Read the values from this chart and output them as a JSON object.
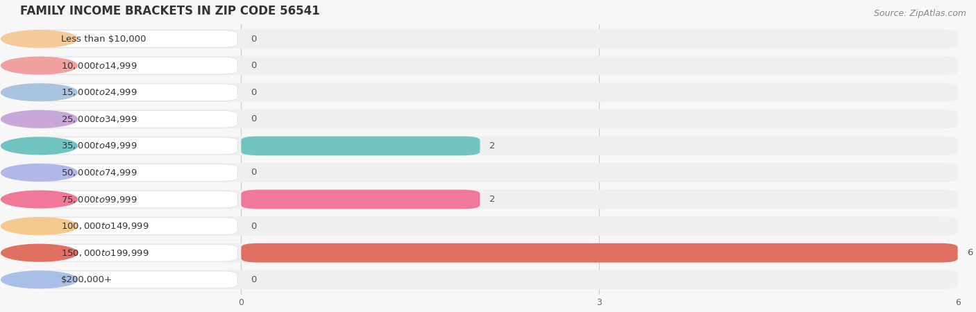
{
  "title": "FAMILY INCOME BRACKETS IN ZIP CODE 56541",
  "source": "Source: ZipAtlas.com",
  "categories": [
    "Less than $10,000",
    "$10,000 to $14,999",
    "$15,000 to $24,999",
    "$25,000 to $34,999",
    "$35,000 to $49,999",
    "$50,000 to $74,999",
    "$75,000 to $99,999",
    "$100,000 to $149,999",
    "$150,000 to $199,999",
    "$200,000+"
  ],
  "values": [
    0,
    0,
    0,
    0,
    2,
    0,
    2,
    0,
    6,
    0
  ],
  "bar_colors": [
    "#F5C99A",
    "#F0A0A0",
    "#A8C4E0",
    "#C8A8D8",
    "#72C4C0",
    "#B0B8E8",
    "#F07898",
    "#F5C890",
    "#E07060",
    "#A8C0E8"
  ],
  "xlim": [
    0,
    6
  ],
  "xtick_values": [
    0,
    3,
    6
  ],
  "background_color": "#f7f7f7",
  "row_bg_color": "#efefef",
  "label_pill_color": "#ffffff",
  "title_fontsize": 12,
  "source_fontsize": 9,
  "label_fontsize": 9.5,
  "value_fontsize": 9.5
}
